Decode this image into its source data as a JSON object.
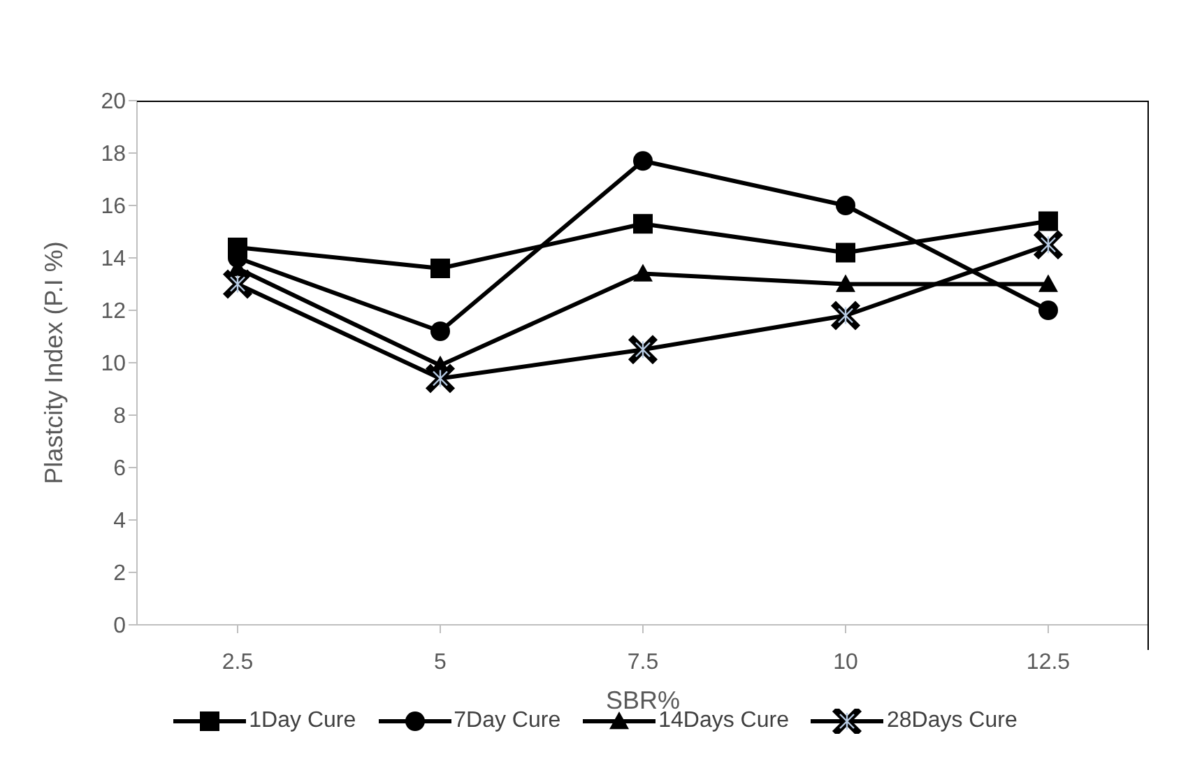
{
  "chart_data": {
    "type": "line",
    "xlabel": "SBR%",
    "ylabel": "Plastcity Index (P.I %)",
    "categories": [
      "2.5",
      "5",
      "7.5",
      "10",
      "12.5"
    ],
    "series": [
      {
        "name": "1Day Cure",
        "color": "#000000",
        "marker": "square",
        "values": [
          14.4,
          13.6,
          15.3,
          14.2,
          15.4
        ]
      },
      {
        "name": "7Day Cure",
        "color": "#000000",
        "marker": "circle",
        "values": [
          14.0,
          11.2,
          17.7,
          16.0,
          12.0
        ]
      },
      {
        "name": "14Days Cure",
        "color": "#000000",
        "marker": "triangle",
        "values": [
          13.6,
          9.9,
          13.4,
          13.0,
          13.0
        ]
      },
      {
        "name": "28Days Cure",
        "color": "#000000",
        "marker": "cross",
        "values": [
          13.0,
          9.4,
          10.5,
          11.8,
          14.5
        ]
      }
    ],
    "ylim": [
      0,
      20
    ],
    "yticks": [
      0,
      2,
      4,
      6,
      8,
      10,
      12,
      14,
      16,
      18,
      20
    ],
    "grid": false,
    "legend": "bottom",
    "line_style": "solid"
  }
}
